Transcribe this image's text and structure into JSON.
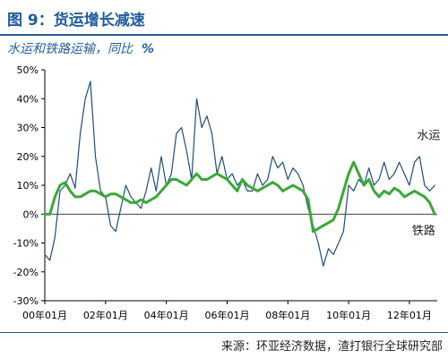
{
  "figure": {
    "title": "图 9：货运增长减速",
    "subtitle": "水运和铁路运输，同比",
    "unit": "%",
    "source": "来源：环亚经济数据，渣打银行全球研究部"
  },
  "colors": {
    "title": "#1f5c99",
    "water": "#1f4e79",
    "rail": "#3aa935",
    "axis": "#000000"
  },
  "chart_data": {
    "type": "line",
    "ylim": [
      -30,
      50
    ],
    "yticks": [
      "-30%",
      "-20%",
      "-10%",
      "0%",
      "10%",
      "20%",
      "30%",
      "40%",
      "50%"
    ],
    "ytick_values": [
      -30,
      -20,
      -10,
      0,
      10,
      20,
      30,
      40,
      50
    ],
    "xlim": [
      0,
      155
    ],
    "xticks": [
      "00年01月",
      "02年01月",
      "04年01月",
      "06年01月",
      "08年01月",
      "10年01月",
      "12年01月"
    ],
    "xtick_values": [
      0,
      24,
      48,
      72,
      96,
      120,
      144
    ],
    "series": [
      {
        "name": "水运",
        "color": "#1f4e79",
        "x": [
          0,
          2,
          4,
          6,
          8,
          10,
          12,
          14,
          16,
          18,
          20,
          22,
          24,
          26,
          28,
          30,
          32,
          34,
          36,
          38,
          40,
          42,
          44,
          46,
          48,
          50,
          52,
          54,
          56,
          58,
          60,
          62,
          64,
          66,
          68,
          70,
          72,
          74,
          76,
          78,
          80,
          82,
          84,
          86,
          88,
          90,
          92,
          94,
          96,
          98,
          100,
          102,
          104,
          106,
          108,
          110,
          112,
          114,
          116,
          118,
          120,
          122,
          124,
          126,
          128,
          130,
          132,
          134,
          136,
          138,
          140,
          142,
          144,
          146,
          148,
          150,
          152,
          154
        ],
        "values": [
          -14,
          -16,
          -8,
          8,
          10,
          14,
          9,
          28,
          40,
          46,
          20,
          8,
          6,
          -4,
          -6,
          2,
          10,
          6,
          4,
          2,
          8,
          16,
          8,
          20,
          10,
          14,
          28,
          30,
          22,
          12,
          40,
          30,
          34,
          28,
          14,
          20,
          12,
          14,
          10,
          12,
          8,
          8,
          14,
          10,
          12,
          20,
          16,
          18,
          12,
          16,
          14,
          10,
          2,
          -4,
          -10,
          -18,
          -12,
          -14,
          -10,
          -6,
          10,
          8,
          12,
          10,
          16,
          10,
          12,
          18,
          12,
          14,
          18,
          14,
          10,
          18,
          20,
          10,
          8,
          10
        ]
      },
      {
        "name": "铁路",
        "color": "#3aa935",
        "x": [
          0,
          2,
          4,
          6,
          8,
          10,
          12,
          14,
          16,
          18,
          20,
          22,
          24,
          26,
          28,
          30,
          32,
          34,
          36,
          38,
          40,
          42,
          44,
          46,
          48,
          50,
          52,
          54,
          56,
          58,
          60,
          62,
          64,
          66,
          68,
          70,
          72,
          74,
          76,
          78,
          80,
          82,
          84,
          86,
          88,
          90,
          92,
          94,
          96,
          98,
          100,
          102,
          104,
          106,
          108,
          110,
          112,
          114,
          116,
          118,
          120,
          122,
          124,
          126,
          128,
          130,
          132,
          134,
          136,
          138,
          140,
          142,
          144,
          146,
          148,
          150,
          152,
          154
        ],
        "values": [
          0,
          0,
          6,
          10,
          11,
          8,
          6,
          6,
          7,
          8,
          8,
          7,
          6,
          7,
          7,
          6,
          5,
          4,
          4,
          5,
          4,
          5,
          6,
          8,
          10,
          12,
          12,
          11,
          10,
          12,
          14,
          12,
          12,
          13,
          14,
          13,
          12,
          10,
          8,
          12,
          10,
          9,
          8,
          9,
          10,
          11,
          10,
          8,
          9,
          10,
          9,
          8,
          5,
          -6,
          -5,
          -4,
          -3,
          -2,
          2,
          8,
          14,
          18,
          14,
          10,
          12,
          8,
          6,
          8,
          7,
          9,
          8,
          6,
          7,
          8,
          7,
          6,
          4,
          0
        ]
      }
    ],
    "annotations": [
      {
        "text": "水运",
        "series": "水运"
      },
      {
        "text": "铁路",
        "series": "铁路"
      }
    ]
  }
}
